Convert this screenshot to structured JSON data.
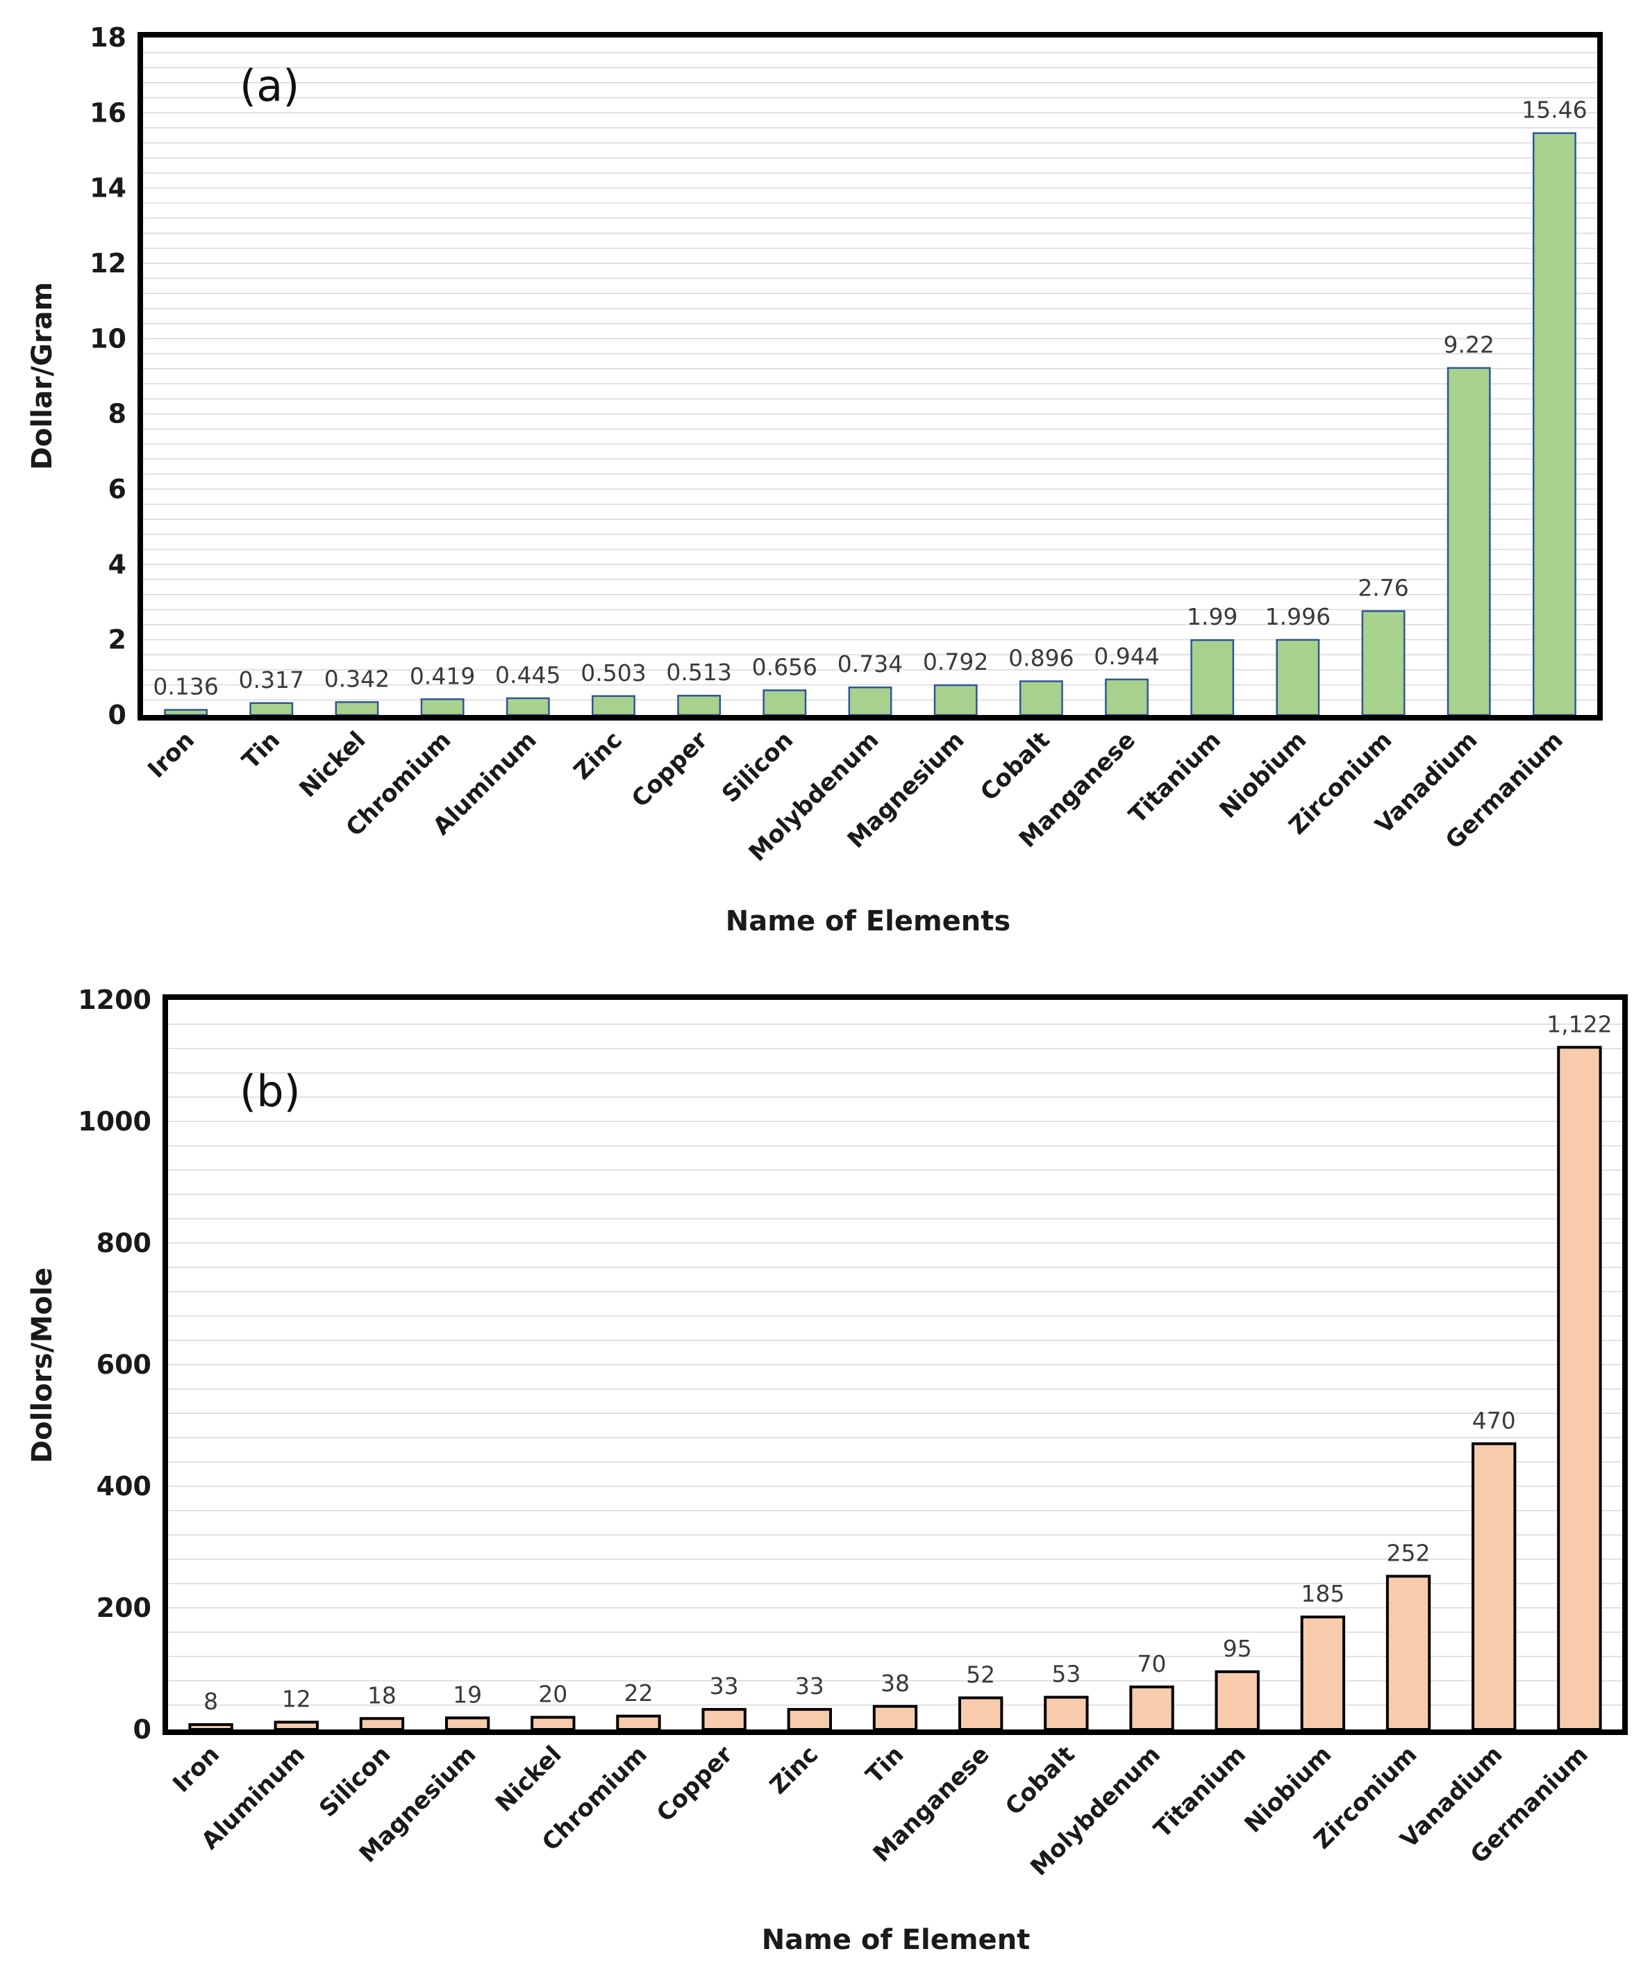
{
  "chart_data": [
    {
      "type": "bar",
      "panel_label": "(a)",
      "xlabel": "Name of Elements",
      "ylabel": "Dollar/Gram",
      "ylim": [
        0,
        18
      ],
      "yticks": [
        "0",
        "2",
        "4",
        "6",
        "8",
        "10",
        "12",
        "14",
        "16",
        "18"
      ],
      "categories": [
        "Iron",
        "Tin",
        "Nickel",
        "Chromium",
        "Aluminum",
        "Zinc",
        "Copper",
        "Silicon",
        "Molybdenum",
        "Magnesium",
        "Cobalt",
        "Manganese",
        "Titanium",
        "Niobium",
        "Zirconium",
        "Vanadium",
        "Germanium"
      ],
      "values": [
        0.136,
        0.317,
        0.342,
        0.419,
        0.445,
        0.503,
        0.513,
        0.656,
        0.734,
        0.792,
        0.896,
        0.944,
        1.99,
        1.996,
        2.76,
        9.22,
        15.46
      ],
      "data_labels": [
        "0.136",
        "0.317",
        "0.342",
        "0.419",
        "0.445",
        "0.503",
        "0.513",
        "0.656",
        "0.734",
        "0.792",
        "0.896",
        "0.944",
        "1.99",
        "1.996",
        "2.76",
        "9.22",
        "15.46"
      ],
      "bar_color": "#a9d18e",
      "bar_edge": "#2f5597",
      "grid": true
    },
    {
      "type": "bar",
      "panel_label": "(b)",
      "xlabel": "Name of Element",
      "ylabel": "Dollors/Mole",
      "ylim": [
        0,
        1200
      ],
      "yticks": [
        "0",
        "200",
        "400",
        "600",
        "800",
        "1000",
        "1200"
      ],
      "categories": [
        "Iron",
        "Aluminum",
        "Silicon",
        "Magnesium",
        "Nickel",
        "Chromium",
        "Copper",
        "Zinc",
        "Tin",
        "Manganese",
        "Cobalt",
        "Molybdenum",
        "Titanium",
        "Niobium",
        "Zirconium",
        "Vanadium",
        "Germanium"
      ],
      "values": [
        8,
        12,
        18,
        19,
        20,
        22,
        33,
        33,
        38,
        52,
        53,
        70,
        95,
        185,
        252,
        470,
        1122
      ],
      "data_labels": [
        "8",
        "12",
        "18",
        "19",
        "20",
        "22",
        "33",
        "33",
        "38",
        "52",
        "53",
        "70",
        "95",
        "185",
        "252",
        "470",
        "1,122"
      ],
      "bar_color": "#f8cbad",
      "bar_edge": "#000000",
      "grid": true
    }
  ]
}
